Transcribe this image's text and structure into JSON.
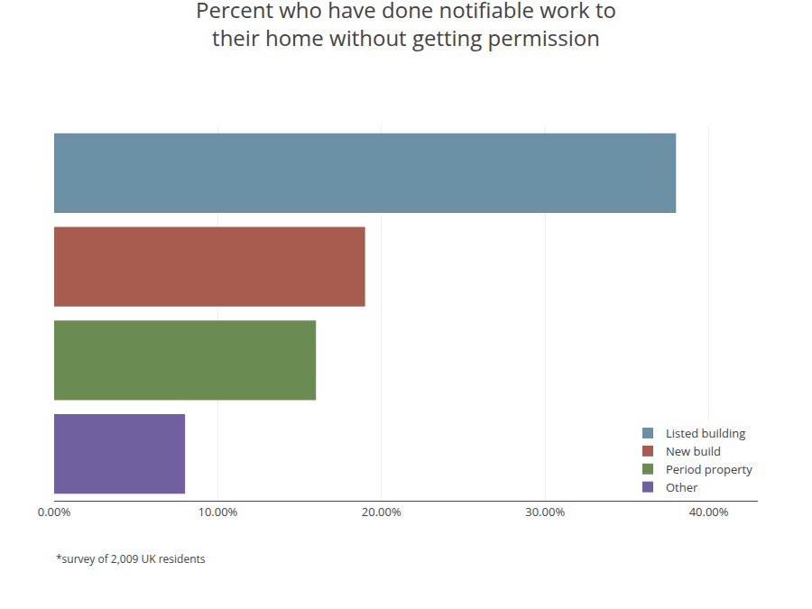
{
  "chart_data": {
    "type": "bar",
    "orientation": "horizontal",
    "title": "Percent who have done notifiable work to\ntheir home without getting permission",
    "categories": [
      "Listed building",
      "New build",
      "Period property",
      "Other"
    ],
    "values": [
      38,
      19,
      16,
      8
    ],
    "colors": [
      "#6b8fa3",
      "#a85c50",
      "#6a8c52",
      "#7060a0"
    ],
    "xlim": [
      0,
      43
    ],
    "xticks": [
      {
        "value": 0,
        "label": "0.00%"
      },
      {
        "value": 10,
        "label": "10.00%"
      },
      {
        "value": 20,
        "label": "20.00%"
      },
      {
        "value": 30,
        "label": "30.00%"
      },
      {
        "value": 40,
        "label": "40.00%"
      }
    ],
    "grid": true,
    "legend": "lower right",
    "tick_labels": "x",
    "annotations": [
      "*survey of 2,009 UK residents"
    ]
  }
}
